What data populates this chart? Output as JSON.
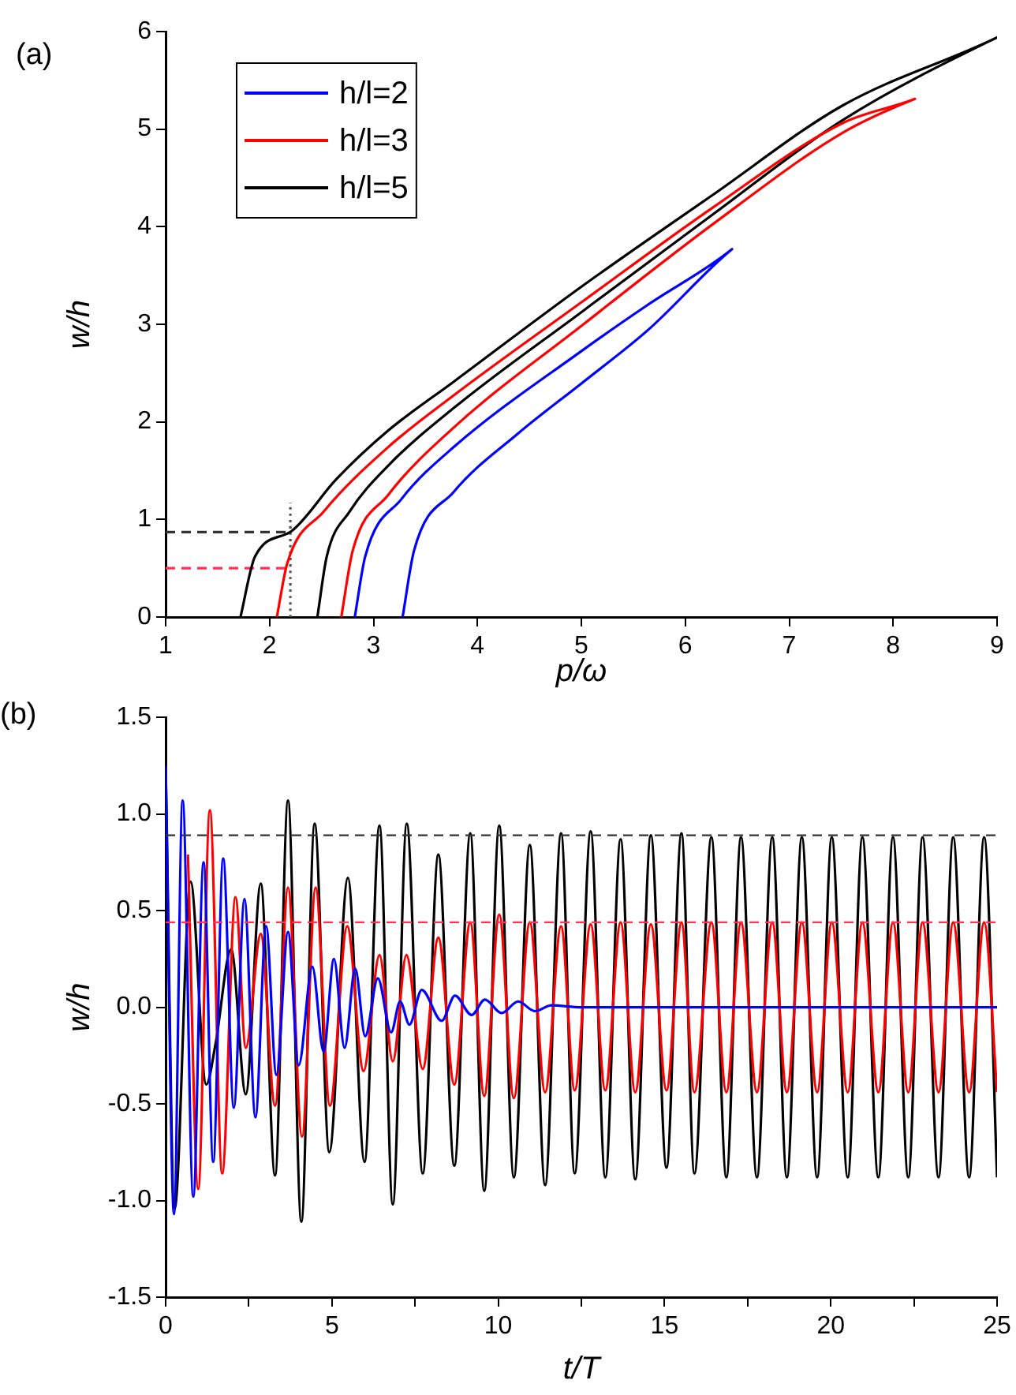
{
  "chart_data": [
    {
      "type": "line",
      "title": "(a)",
      "xlabel": "p/ω",
      "ylabel": "w/h",
      "xlim": [
        1,
        9
      ],
      "ylim": [
        0,
        6
      ],
      "xticks": [
        1,
        2,
        3,
        4,
        5,
        6,
        7,
        8,
        9
      ],
      "yticks": [
        0,
        1,
        2,
        3,
        4,
        5,
        6
      ],
      "grid": false,
      "legend": "top left",
      "marker": "none",
      "series": [
        {
          "name": "h/l=2",
          "color": "#0000ff",
          "x": [
            2.82,
            2.92,
            3.27,
            3.77,
            5.02,
            5.64,
            6.45,
            5.64,
            5.02,
            4.39,
            3.77,
            3.39,
            3.28
          ],
          "values": [
            0,
            0.62,
            1.21,
            1.74,
            2.74,
            3.2,
            3.77,
            2.94,
            2.41,
            1.88,
            1.28,
            0.68,
            0
          ]
        },
        {
          "name": "h/l=3",
          "color": "#ff0000",
          "x": [
            2.07,
            2.17,
            2.52,
            3.14,
            3.77,
            5.02,
            6.27,
            7.51,
            8.21,
            7.51,
            6.27,
            5.02,
            3.77,
            3.14,
            2.8,
            2.69
          ],
          "values": [
            0,
            0.55,
            1.08,
            1.74,
            2.27,
            3.24,
            4.2,
            5.06,
            5.31,
            4.96,
            4.03,
            3,
            1.94,
            1.25,
            0.68,
            0
          ]
        },
        {
          "name": "h/l=5",
          "color": "#000000",
          "x": [
            1.72,
            1.86,
            2.21,
            2.64,
            3.14,
            3.77,
            5.02,
            6.27,
            7.51,
            9,
            7.51,
            6.27,
            5.02,
            3.77,
            3.14,
            2.77,
            2.55,
            2.46
          ],
          "values": [
            0,
            0.62,
            0.88,
            1.41,
            1.91,
            2.41,
            3.4,
            4.33,
            5.24,
            5.94,
            5.09,
            4.13,
            3.14,
            2.14,
            1.55,
            1.08,
            0.62,
            0
          ]
        },
        {
          "color": "#333333",
          "line_style": "dashed",
          "x": [
            1,
            2.2
          ],
          "values": [
            0.87,
            0.87
          ]
        },
        {
          "color": "#ff3355",
          "line_style": "dashed",
          "x": [
            1,
            2.2
          ],
          "values": [
            0.5,
            0.5
          ]
        },
        {
          "color": "#555555",
          "line_style": "dotted",
          "x": [
            2.2,
            2.2
          ],
          "values": [
            0,
            1.17
          ]
        }
      ]
    },
    {
      "type": "line",
      "title": "(b)",
      "xlabel": "t/T",
      "ylabel": "w/h",
      "xlim": [
        0,
        25
      ],
      "ylim": [
        -1.5,
        1.5
      ],
      "xticks": [
        0,
        {
          "value": 2.5,
          "label": null
        },
        5,
        {
          "value": 7.5,
          "label": null
        },
        10,
        {
          "value": 12.5,
          "label": null
        },
        15,
        {
          "value": 17.5,
          "label": null
        },
        20,
        {
          "value": 22.5,
          "label": null
        },
        25
      ],
      "yticks": [
        -1.5,
        {
          "value": -1,
          "label": "-1.0"
        },
        -0.5,
        {
          "value": 0,
          "label": "0.0"
        },
        0.5,
        {
          "value": 1,
          "label": "1.0"
        },
        1.5
      ],
      "grid": false,
      "legend": false,
      "marker": "none",
      "ref_lines": [
        {
          "axis": "y",
          "value": 0.89,
          "color": "#333333",
          "line_style": "dashed"
        },
        {
          "axis": "y",
          "value": 0.44,
          "color": "#ff3355",
          "line_style": "dashed"
        }
      ],
      "series": [
        {
          "color": "#0000ff",
          "x": [
            0,
            0.25,
            0.51,
            0.83,
            1.14,
            1.43,
            1.73,
            2.05,
            2.37,
            2.7,
            3.02,
            3.33,
            3.68,
            4,
            4.41,
            4.75,
            5.06,
            5.38,
            5.7,
            6,
            6.38,
            6.78,
            7.05,
            7.33,
            7.7,
            8.3,
            8.7,
            9.2,
            9.6,
            10.1,
            10.6,
            11.1,
            11.6,
            12.5,
            25
          ],
          "values": [
            1.25,
            -1.07,
            1.07,
            -0.98,
            0.75,
            -0.8,
            0.77,
            -0.52,
            0.56,
            -0.57,
            0.42,
            -0.35,
            0.39,
            -0.3,
            0.21,
            -0.23,
            0.25,
            -0.21,
            0.2,
            -0.15,
            0.15,
            -0.13,
            0.03,
            -0.09,
            0.09,
            -0.07,
            0.06,
            -0.04,
            0.04,
            -0.03,
            0.03,
            -0.02,
            0.01,
            0,
            0
          ]
        },
        {
          "color": "#ff0000",
          "x": [
            0.67,
            0.98,
            1.33,
            1.7,
            2.1,
            2.41,
            2.86,
            3.29,
            3.68,
            4.1,
            4.51,
            4.94,
            5.46,
            5.95,
            6.43,
            6.83,
            7.24,
            7.73,
            8.2,
            8.68,
            9.16,
            9.58,
            10.03,
            10.47,
            10.95,
            11.41,
            11.89,
            12.3,
            12.78,
            13.22,
            13.68,
            14.12,
            14.59,
            15.06,
            15.51,
            15.9,
            16.41,
            16.86,
            17.3,
            17.78,
            18.24,
            18.68,
            19.13,
            19.59,
            20.03,
            20.51,
            20.95,
            21.43,
            21.87,
            22.33,
            22.76,
            23.24,
            23.68,
            24.16,
            24.61,
            25
          ],
          "values": [
            0.79,
            -0.94,
            1.02,
            -0.86,
            0.57,
            -0.21,
            0.38,
            -0.51,
            0.62,
            -0.67,
            0.62,
            -0.51,
            0.42,
            -0.33,
            0.27,
            -0.28,
            0.27,
            -0.32,
            0.36,
            -0.4,
            0.44,
            -0.46,
            0.48,
            -0.47,
            0.44,
            -0.44,
            0.42,
            -0.43,
            0.43,
            -0.43,
            0.44,
            -0.44,
            0.43,
            -0.43,
            0.44,
            -0.44,
            0.44,
            -0.44,
            0.44,
            -0.44,
            0.44,
            -0.44,
            0.44,
            -0.44,
            0.44,
            -0.44,
            0.44,
            -0.44,
            0.44,
            -0.44,
            0.44,
            -0.44,
            0.44,
            -0.44,
            0.44,
            -0.44
          ]
        },
        {
          "color": "#000000",
          "x": [
            0,
            0.27,
            0.75,
            1.22,
            1.5,
            1.97,
            2.41,
            2.86,
            3.29,
            3.68,
            4.08,
            4.48,
            4.92,
            5.48,
            5.98,
            6.43,
            6.83,
            7.25,
            7.73,
            8.2,
            8.68,
            9.16,
            9.58,
            10.03,
            10.47,
            10.95,
            11.41,
            11.89,
            12.3,
            12.78,
            13.22,
            13.68,
            14.12,
            14.59,
            15.06,
            15.51,
            15.9,
            16.41,
            16.86,
            17.3,
            17.78,
            18.24,
            18.68,
            19.13,
            19.59,
            20.03,
            20.51,
            20.95,
            21.43,
            21.87,
            22.33,
            22.76,
            23.24,
            23.68,
            24.16,
            24.61,
            25
          ],
          "values": [
            1.25,
            -1.04,
            0.65,
            -0.4,
            -0.19,
            0.3,
            -0.45,
            0.64,
            -0.87,
            1.07,
            -1.11,
            0.95,
            -0.75,
            0.67,
            -0.8,
            0.94,
            -1.02,
            0.95,
            -0.86,
            0.79,
            -0.82,
            0.9,
            -0.95,
            0.94,
            -0.88,
            0.84,
            -0.92,
            0.9,
            -0.86,
            0.91,
            -0.88,
            0.87,
            -0.89,
            0.89,
            -0.83,
            0.9,
            -0.86,
            0.88,
            -0.88,
            0.88,
            -0.88,
            0.88,
            -0.88,
            0.88,
            -0.88,
            0.88,
            -0.88,
            0.88,
            -0.88,
            0.88,
            -0.88,
            0.88,
            -0.88,
            0.88,
            -0.88,
            0.88,
            -0.88
          ]
        }
      ]
    }
  ]
}
